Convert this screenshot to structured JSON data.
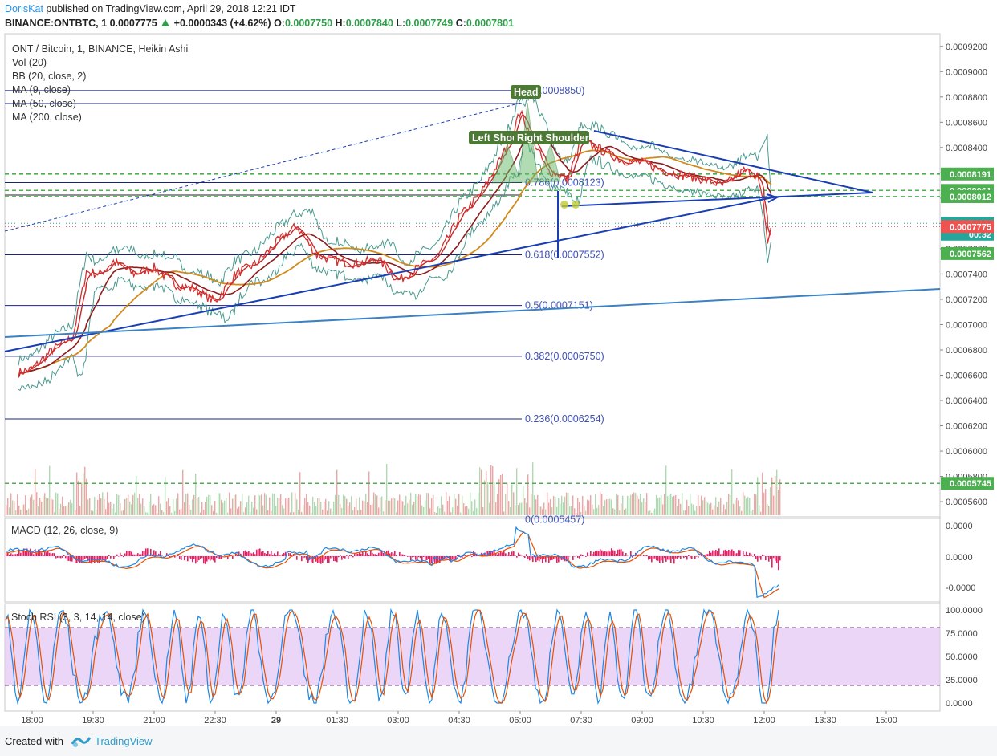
{
  "header": {
    "user": "DorisKat",
    "published_text": "published on TradingView.com, April 29, 2018 12:21 IDT",
    "symbol_line": "BINANCE:ONTBTC, 1",
    "last": "0.0007775",
    "change": "+0.0000343 (+4.62%)",
    "open_label": "O:",
    "open": "0.0007750",
    "high_label": "H:",
    "high": "0.0007840",
    "low_label": "L:",
    "low": "0.0007749",
    "close_label": "C:",
    "close": "0.0007801"
  },
  "legend": {
    "title": "ONT / Bitcoin, 1, BINANCE, Heikin Ashi",
    "items": [
      "Vol (20)",
      "BB (20, close, 2)",
      "MA (9, close)",
      "MA (50, close)",
      "MA (200, close)"
    ]
  },
  "footer": {
    "created_with": "Created with",
    "brand": "TradingView"
  },
  "colors": {
    "up": "#2e9e4a",
    "price_red": "#d32f2f",
    "ma9": "#c62828",
    "ma50": "#8d1c1c",
    "ma200": "#d2891a",
    "bb": "#4a9a8e",
    "trend_blue": "#1a3fb5",
    "trend_lightblue": "#3a82c4",
    "fib": "#1a237e",
    "dash_green": "#4caf50",
    "macd_line": "#1e88e5",
    "macd_signal": "#e65100",
    "macd_hist": "#e91e63",
    "stoch_k": "#1e88e5",
    "stoch_d": "#e65100",
    "stoch_band": "#e1bee7"
  },
  "chart_data": [
    {
      "type": "line",
      "title": "ONT / Bitcoin, 1, BINANCE, Heikin Ashi",
      "xlabel": "",
      "ylabel": "",
      "xticks": [
        "18:00",
        "19:30",
        "21:00",
        "22:30",
        "29",
        "01:30",
        "03:00",
        "04:30",
        "06:00",
        "07:30",
        "09:00",
        "10:30",
        "12:00",
        "13:30",
        "15:00"
      ],
      "ylim": [
        0.000548,
        0.00093
      ],
      "yticks": [
        "0.0009200",
        "0.0009000",
        "0.0008800",
        "0.0008600",
        "0.0008400",
        "0.0008200",
        "0.0008000",
        "0.0007800",
        "0.0007600",
        "0.0007400",
        "0.0007200",
        "0.0007000",
        "0.0006800",
        "0.0006600",
        "0.0006400",
        "0.0006200",
        "0.0006000",
        "0.0005800",
        "0.0005600"
      ],
      "price_series": {
        "name": "price",
        "x": [
          "17:40",
          "18:00",
          "18:30",
          "19:00",
          "19:20",
          "19:40",
          "20:00",
          "20:30",
          "21:00",
          "21:30",
          "22:00",
          "22:30",
          "23:00",
          "23:30",
          "00:00",
          "00:30",
          "01:00",
          "01:30",
          "02:00",
          "02:30",
          "03:00",
          "03:30",
          "04:00",
          "04:30",
          "05:00",
          "05:20",
          "05:40",
          "06:00",
          "06:20",
          "06:40",
          "07:00",
          "07:10",
          "07:30",
          "08:00",
          "08:30",
          "09:00",
          "09:30",
          "10:00",
          "10:30",
          "11:00",
          "11:30",
          "11:50",
          "12:00",
          "12:05",
          "12:10"
        ],
        "values": [
          0.000662,
          0.000665,
          0.00068,
          0.00069,
          0.000742,
          0.00074,
          0.00075,
          0.00074,
          0.000745,
          0.000732,
          0.000728,
          0.000718,
          0.00074,
          0.000748,
          0.000765,
          0.000778,
          0.000755,
          0.00075,
          0.000748,
          0.000752,
          0.000735,
          0.000745,
          0.000755,
          0.000785,
          0.000802,
          0.00082,
          0.00084,
          0.000868,
          0.000845,
          0.000822,
          0.000818,
          0.000815,
          0.000845,
          0.000838,
          0.00083,
          0.000828,
          0.000822,
          0.000818,
          0.000815,
          0.00081,
          0.000822,
          0.000818,
          0.00079,
          0.000765,
          0.000775
        ]
      },
      "annotations": {
        "pattern_labels": [
          "Head",
          "Left Shoulder",
          "Right Shoulder"
        ],
        "fib_levels": [
          {
            "label": "1(0.0008850)",
            "value": 0.000885
          },
          {
            "label": "0.786(0.0008123)",
            "value": 0.0008123
          },
          {
            "label": "0.618(0.0007552)",
            "value": 0.0007552
          },
          {
            "label": "0.5(0.0007151)",
            "value": 0.0007151
          },
          {
            "label": "0.382(0.0006750)",
            "value": 0.000675
          },
          {
            "label": "0.236(0.0006254)",
            "value": 0.0006254
          },
          {
            "label": "0(0.0005457)",
            "value": 0.0005457
          }
        ],
        "horizontal_levels": [
          0.0008191,
          0.0008061,
          0.0008012,
          0.0005745
        ]
      },
      "price_labels": [
        {
          "text": "0.0008191",
          "value": 0.0008191,
          "bg": "#4caf50"
        },
        {
          "text": "0.0008061",
          "value": 0.0008061,
          "bg": "#4caf50"
        },
        {
          "text": "0.0008012",
          "value": 0.0008012,
          "bg": "#4caf50"
        },
        {
          "text": "0.0007801",
          "value": 0.0007801,
          "bg": "#26a69a"
        },
        {
          "text": "00:32",
          "value": 0.0007715,
          "bg": "#26a69a"
        },
        {
          "text": "0.0007775",
          "value": 0.0007775,
          "bg": "#ef5350"
        },
        {
          "text": "0.0007562",
          "value": 0.0007562,
          "bg": "#4caf50"
        },
        {
          "text": "0.0005745",
          "value": 0.0005745,
          "bg": "#4caf50"
        }
      ]
    },
    {
      "type": "line",
      "title": "MACD (12, 26, close, 9)",
      "yticks": [
        "0.0000",
        "0.0000",
        "-0.0000"
      ]
    },
    {
      "type": "line",
      "title": "Stoch RSI (3, 3, 14, 14, close)",
      "yticks": [
        "100.0000",
        "75.0000",
        "50.0000",
        "25.0000",
        "0.0000"
      ],
      "ylim": [
        0,
        100
      ],
      "bands": [
        20,
        80
      ]
    }
  ]
}
